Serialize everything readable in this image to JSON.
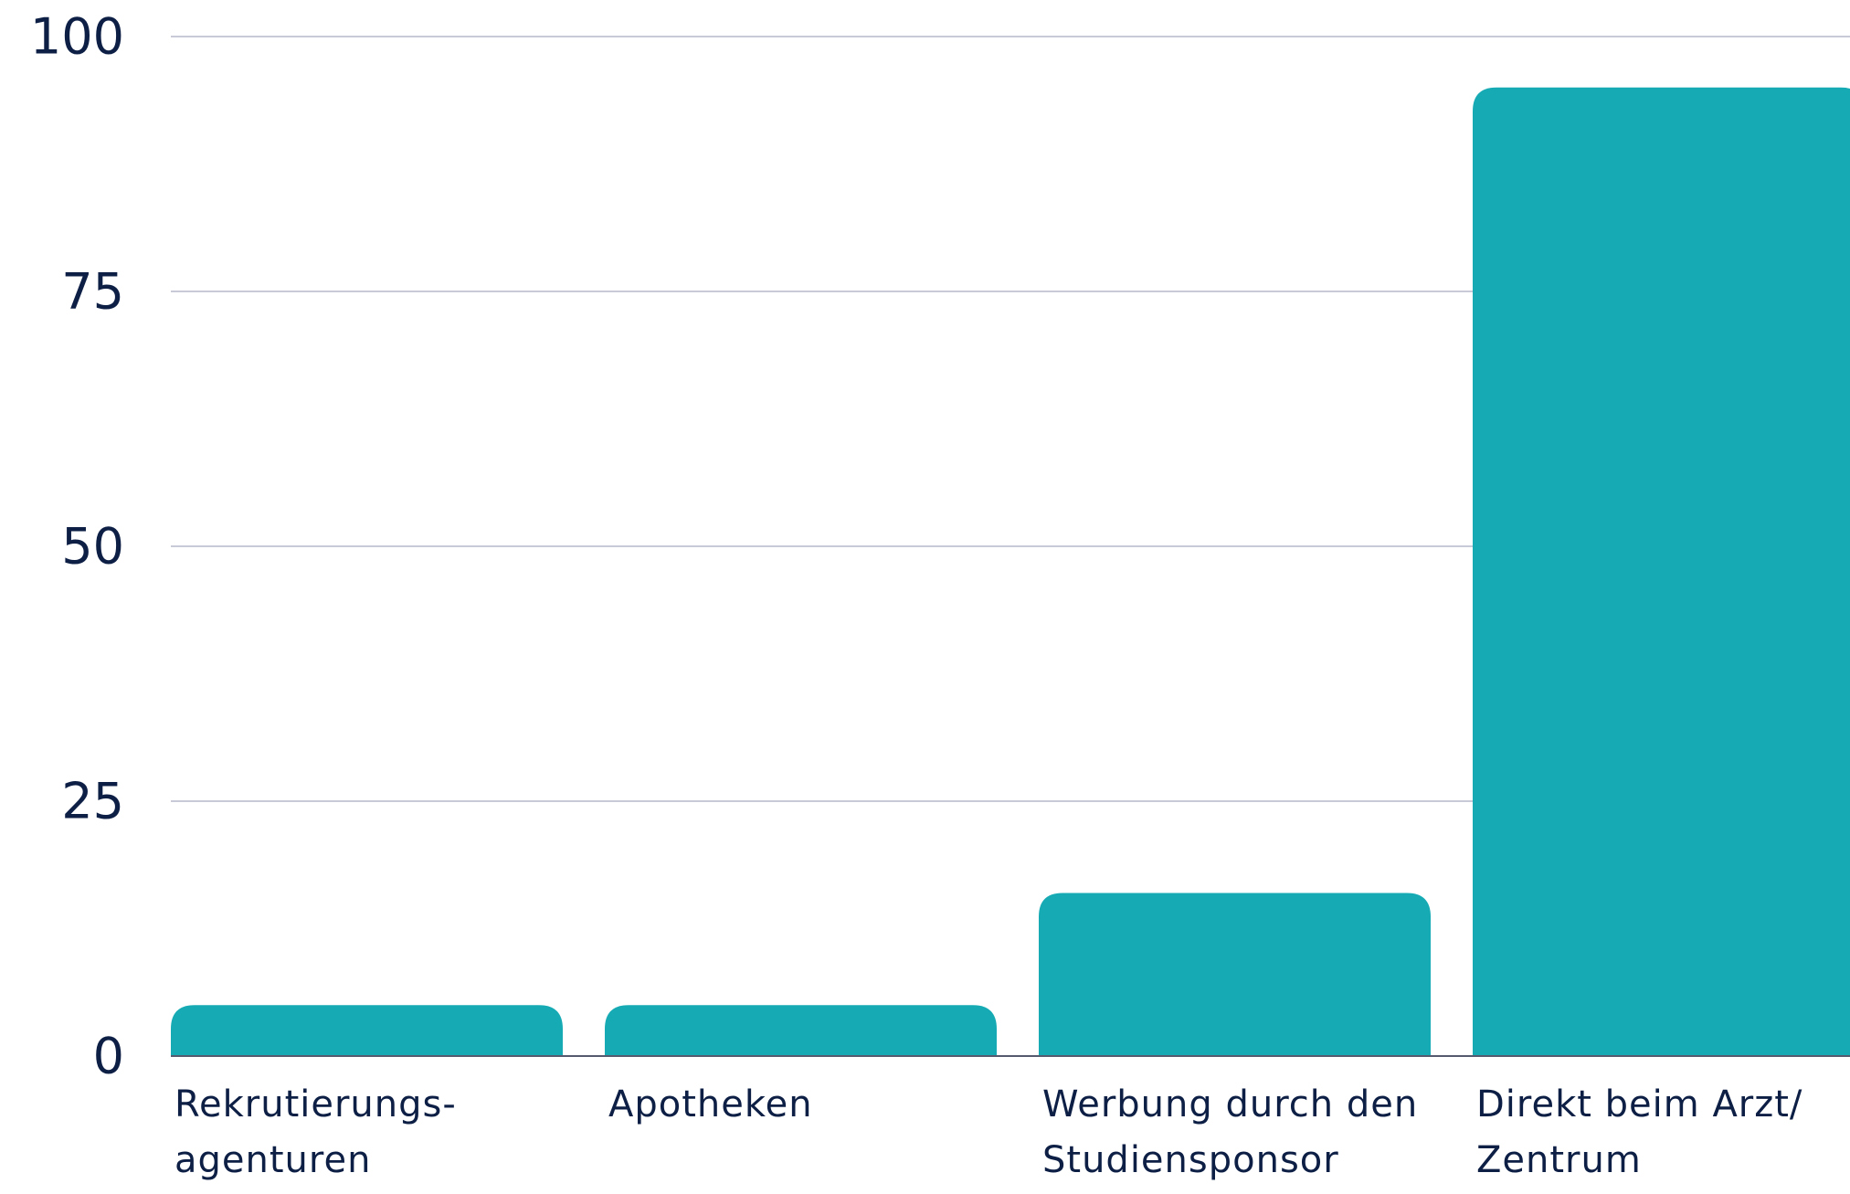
{
  "chart_data": {
    "type": "bar",
    "categories": [
      "Rekrutierungs-\nagenturen",
      "Apotheken",
      "Werbung durch den\nStudiensponsor",
      "Direkt beim Arzt/\nZentrum"
    ],
    "values": [
      5,
      5,
      16,
      95
    ],
    "color": "#16abb4",
    "ylim": [
      0,
      100
    ],
    "yticks": [
      0,
      25,
      50,
      75,
      100
    ],
    "grid": true
  }
}
